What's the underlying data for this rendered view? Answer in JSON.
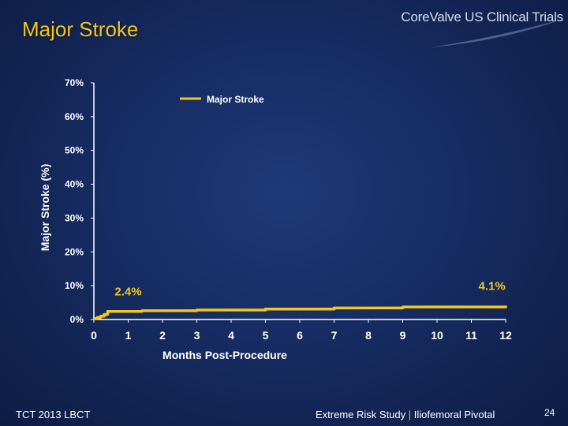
{
  "slide": {
    "title": "Major Stroke",
    "brand": "CoreValve US Clinical Trials",
    "footer_left": "TCT 2013 LBCT",
    "footer_study": "Extreme Risk Study",
    "footer_separator": "|",
    "footer_subset": "Iliofemoral Pivotal",
    "page_number": "24"
  },
  "colors": {
    "title": "#f5c518",
    "series": "#f2c81e",
    "axis": "#ffffff"
  },
  "chart_data": {
    "type": "line",
    "title": "",
    "xlabel": "Months Post-Procedure",
    "ylabel": "Major Stroke (%)",
    "xlim": [
      0,
      12
    ],
    "ylim": [
      0,
      70
    ],
    "x_ticks": [
      "0",
      "1",
      "2",
      "3",
      "4",
      "5",
      "6",
      "7",
      "8",
      "9",
      "10",
      "11",
      "12"
    ],
    "y_ticks": [
      "0%",
      "10%",
      "20%",
      "30%",
      "40%",
      "50%",
      "60%",
      "70%"
    ],
    "legend": {
      "position": "top-left",
      "entries": [
        "Major Stroke"
      ]
    },
    "grid": false,
    "series": [
      {
        "name": "Major Stroke",
        "step": true,
        "x": [
          0,
          0.1,
          0.2,
          0.3,
          0.4,
          1.4,
          3.0,
          5.0,
          7.0,
          9.0,
          12.0
        ],
        "y": [
          0.3,
          0.6,
          1.0,
          1.5,
          2.4,
          2.6,
          2.8,
          3.1,
          3.4,
          3.7,
          4.1
        ]
      }
    ],
    "annotations": [
      {
        "text": "2.4%",
        "x": 1.0,
        "y": 2.4
      },
      {
        "text": "4.1%",
        "x": 11.6,
        "y": 4.1
      }
    ]
  }
}
